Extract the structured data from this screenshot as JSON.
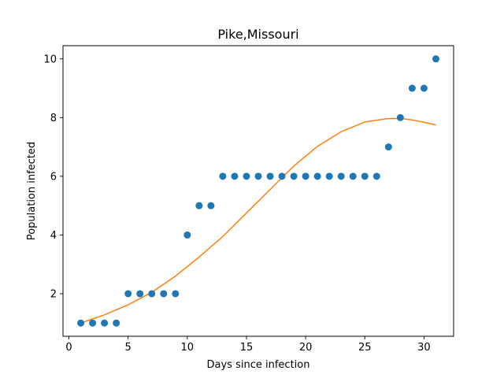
{
  "chart_data": {
    "type": "scatter",
    "title": "Pike,Missouri",
    "xlabel": "Days since infection",
    "ylabel": "Population infected",
    "xlim": [
      -0.5,
      32.5
    ],
    "ylim": [
      0.55,
      10.45
    ],
    "xticks": [
      0,
      5,
      10,
      15,
      20,
      25,
      30
    ],
    "yticks": [
      2,
      4,
      6,
      8,
      10
    ],
    "grid": false,
    "series": [
      {
        "kind": "points",
        "color": "#1f77b4",
        "x": [
          1,
          2,
          3,
          4,
          5,
          6,
          7,
          8,
          9,
          10,
          11,
          12,
          13,
          14,
          15,
          16,
          17,
          18,
          19,
          20,
          21,
          22,
          23,
          24,
          25,
          26,
          27,
          28,
          29,
          30,
          31
        ],
        "y": [
          1,
          1,
          1,
          1,
          2,
          2,
          2,
          2,
          2,
          4,
          5,
          5,
          6,
          6,
          6,
          6,
          6,
          6,
          6,
          6,
          6,
          6,
          6,
          6,
          6,
          6,
          7,
          8,
          9,
          9,
          10
        ]
      },
      {
        "kind": "line",
        "color": "#ff7f0e",
        "x": [
          1,
          3,
          5,
          7,
          9,
          11,
          13,
          15,
          17,
          19,
          21,
          23,
          25,
          27,
          28,
          29,
          30,
          31
        ],
        "y": [
          1.0,
          1.28,
          1.62,
          2.05,
          2.6,
          3.25,
          3.95,
          4.75,
          5.55,
          6.35,
          7.02,
          7.52,
          7.85,
          7.97,
          7.97,
          7.92,
          7.84,
          7.75
        ]
      }
    ]
  }
}
